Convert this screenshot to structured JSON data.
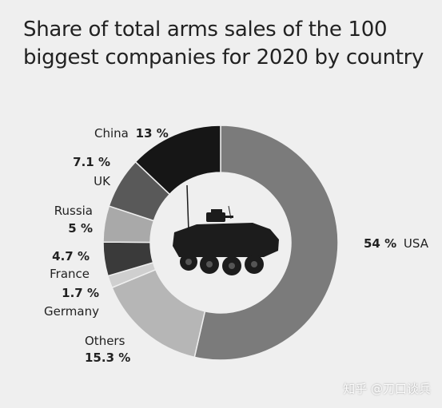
{
  "chart_data": {
    "type": "pie",
    "donut": true,
    "title_lines": [
      "Share of total arms sales of the 100",
      "biggest companies for 2020 by country"
    ],
    "unit": "%",
    "slices": [
      {
        "name": "USA",
        "value": 54,
        "value_label": "54 %",
        "color": "#7b7b7b"
      },
      {
        "name": "Others",
        "value": 15.3,
        "value_label": "15.3 %",
        "color": "#b6b6b6"
      },
      {
        "name": "Germany",
        "value": 1.7,
        "value_label": "1.7 %",
        "color": "#cfcfcf"
      },
      {
        "name": "France",
        "value": 4.7,
        "value_label": "4.7 %",
        "color": "#3a3a3a"
      },
      {
        "name": "Russia",
        "value": 5,
        "value_label": "5 %",
        "color": "#a9a9a9"
      },
      {
        "name": "UK",
        "value": 7.1,
        "value_label": "7.1 %",
        "color": "#595959"
      },
      {
        "name": "China",
        "value": 13,
        "value_label": "13 %",
        "color": "#161616"
      }
    ],
    "center_icon": "armored-vehicle-icon",
    "legend": "none"
  },
  "watermark": "知乎 @刀口谈兵"
}
